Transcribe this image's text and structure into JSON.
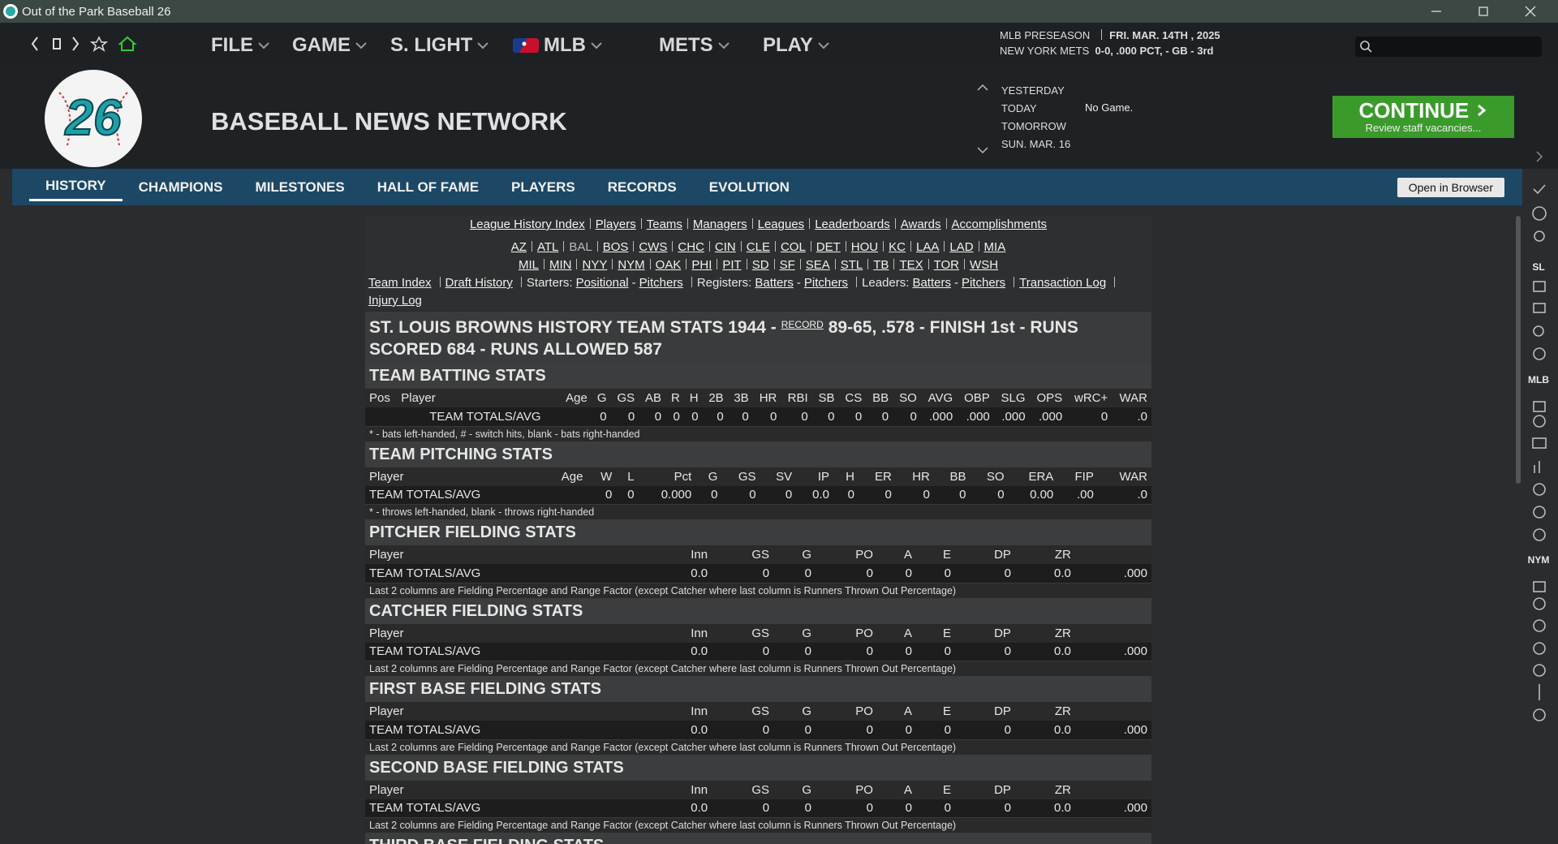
{
  "window": {
    "title": "Out of the Park Baseball 26"
  },
  "menu": [
    "FILE",
    "GAME",
    "S. LIGHT",
    "MLB",
    "METS",
    "PLAY"
  ],
  "status": {
    "phase": "MLB PRESEASON",
    "date": "FRI. MAR. 14TH , 2025",
    "team": "NEW YORK METS",
    "record": "0-0, .000 PCT, - GB - 3rd"
  },
  "logo": "26",
  "header": {
    "title": "BASEBALL NEWS NETWORK"
  },
  "schedule": {
    "days": [
      "YESTERDAY",
      "TODAY",
      "TOMORROW",
      "SUN. MAR. 16"
    ],
    "today_note": "No Game."
  },
  "continue": {
    "label": "CONTINUE",
    "sub": "Review staff vacancies..."
  },
  "tabs": [
    "HISTORY",
    "CHAMPIONS",
    "MILESTONES",
    "HALL OF FAME",
    "PLAYERS",
    "RECORDS",
    "EVOLUTION"
  ],
  "active_tab": 0,
  "open_browser": "Open in Browser",
  "sidebar": [
    "SL",
    "MLB",
    "NYM"
  ],
  "content": {
    "separator": "|",
    "top_links": [
      "League History Index",
      "Players",
      "Teams",
      "Managers",
      "Leagues",
      "Leaderboards",
      "Awards",
      "Accomplishments"
    ],
    "teams_row1": [
      "AZ",
      "ATL",
      "BAL",
      "BOS",
      "CWS",
      "CHC",
      "CIN",
      "CLE",
      "COL",
      "DET",
      "HOU",
      "KC",
      "LAA",
      "LAD",
      "MIA"
    ],
    "teams_row2": [
      "MIL",
      "MIN",
      "NYY",
      "NYM",
      "OAK",
      "PHI",
      "PIT",
      "SD",
      "SF",
      "SEA",
      "STL",
      "TB",
      "TEX",
      "TOR",
      "WSH"
    ],
    "current_team": 2,
    "subnav": [
      {
        "text": "Team Index",
        "link": true
      },
      {
        "text": "|"
      },
      {
        "text": "Draft History",
        "link": true
      },
      {
        "text": "|"
      },
      {
        "text": "Starters:"
      },
      {
        "text": "Positional",
        "link": true
      },
      {
        "text": "-"
      },
      {
        "text": "Pitchers",
        "link": true
      },
      {
        "text": "|"
      },
      {
        "text": "Registers:"
      },
      {
        "text": "Batters",
        "link": true
      },
      {
        "text": "-"
      },
      {
        "text": "Pitchers",
        "link": true
      },
      {
        "text": "|"
      },
      {
        "text": "Leaders:"
      },
      {
        "text": "Batters",
        "link": true
      },
      {
        "text": "-"
      },
      {
        "text": "Pitchers",
        "link": true
      },
      {
        "text": "|"
      },
      {
        "text": "Transaction Log",
        "link": true
      },
      {
        "text": "|"
      },
      {
        "text": "Injury Log",
        "link": true
      }
    ],
    "title_pre": "ST. LOUIS BROWNS HISTORY TEAM STATS 1944 -",
    "title_link": "RECORD",
    "title_post": "89-65, .578 - FINISH 1st - RUNS SCORED 684 - RUNS ALLOWED 587"
  },
  "sections": [
    {
      "title": "TEAM BATTING STATS",
      "columns": [
        "Pos",
        "Player",
        "Age",
        "G",
        "GS",
        "AB",
        "R",
        "H",
        "2B",
        "3B",
        "HR",
        "RBI",
        "SB",
        "CS",
        "BB",
        "SO",
        "AVG",
        "OBP",
        "SLG",
        "OPS",
        "wRC+",
        "WAR"
      ],
      "rows": [
        [
          null,
          "TEAM TOTALS/AVG",
          null,
          "0",
          "0",
          "0",
          "0",
          "0",
          "0",
          "0",
          "0",
          "0",
          "0",
          "0",
          "0",
          "0",
          ".000",
          ".000",
          ".000",
          ".000",
          "0",
          ".0"
        ]
      ],
      "note": "* - bats left-handed, # - switch hits, blank - bats right-handed"
    },
    {
      "title": "TEAM PITCHING STATS",
      "columns": [
        "Player",
        "Age",
        "W",
        "L",
        "Pct",
        "G",
        "GS",
        "SV",
        "IP",
        "H",
        "ER",
        "HR",
        "BB",
        "SO",
        "ERA",
        "FIP",
        "WAR"
      ],
      "rows": [
        [
          "TEAM TOTALS/AVG",
          null,
          "0",
          "0",
          "0.000",
          "0",
          "0",
          "0",
          "0.0",
          "0",
          "0",
          "0",
          "0",
          "0",
          "0.00",
          ".00",
          ".0"
        ]
      ],
      "note": "* - throws left-handed, blank - throws right-handed"
    },
    {
      "title": "PITCHER FIELDING STATS",
      "columns": [
        "Player",
        "Inn",
        "GS",
        "G",
        "PO",
        "A",
        "E",
        "DP",
        "ZR",
        null
      ],
      "rows": [
        [
          "TEAM TOTALS/AVG",
          "0.0",
          "0",
          "0",
          "0",
          "0",
          "0",
          "0",
          "0.0",
          ".000"
        ]
      ],
      "note": "Last 2 columns are Fielding Percentage and Range Factor (except Catcher where last column is Runners Thrown Out Percentage)"
    },
    {
      "title": "CATCHER FIELDING STATS",
      "columns": [
        "Player",
        "Inn",
        "GS",
        "G",
        "PO",
        "A",
        "E",
        "DP",
        "ZR",
        null
      ],
      "rows": [
        [
          "TEAM TOTALS/AVG",
          "0.0",
          "0",
          "0",
          "0",
          "0",
          "0",
          "0",
          "0.0",
          ".000"
        ]
      ],
      "note": "Last 2 columns are Fielding Percentage and Range Factor (except Catcher where last column is Runners Thrown Out Percentage)"
    },
    {
      "title": "FIRST BASE FIELDING STATS",
      "columns": [
        "Player",
        "Inn",
        "GS",
        "G",
        "PO",
        "A",
        "E",
        "DP",
        "ZR",
        null
      ],
      "rows": [
        [
          "TEAM TOTALS/AVG",
          "0.0",
          "0",
          "0",
          "0",
          "0",
          "0",
          "0",
          "0.0",
          ".000"
        ]
      ],
      "note": "Last 2 columns are Fielding Percentage and Range Factor (except Catcher where last column is Runners Thrown Out Percentage)"
    },
    {
      "title": "SECOND BASE FIELDING STATS",
      "columns": [
        "Player",
        "Inn",
        "GS",
        "G",
        "PO",
        "A",
        "E",
        "DP",
        "ZR",
        null
      ],
      "rows": [
        [
          "TEAM TOTALS/AVG",
          "0.0",
          "0",
          "0",
          "0",
          "0",
          "0",
          "0",
          "0.0",
          ".000"
        ]
      ],
      "note": "Last 2 columns are Fielding Percentage and Range Factor (except Catcher where last column is Runners Thrown Out Percentage)"
    },
    {
      "title": "THIRD BASE FIELDING STATS"
    }
  ]
}
